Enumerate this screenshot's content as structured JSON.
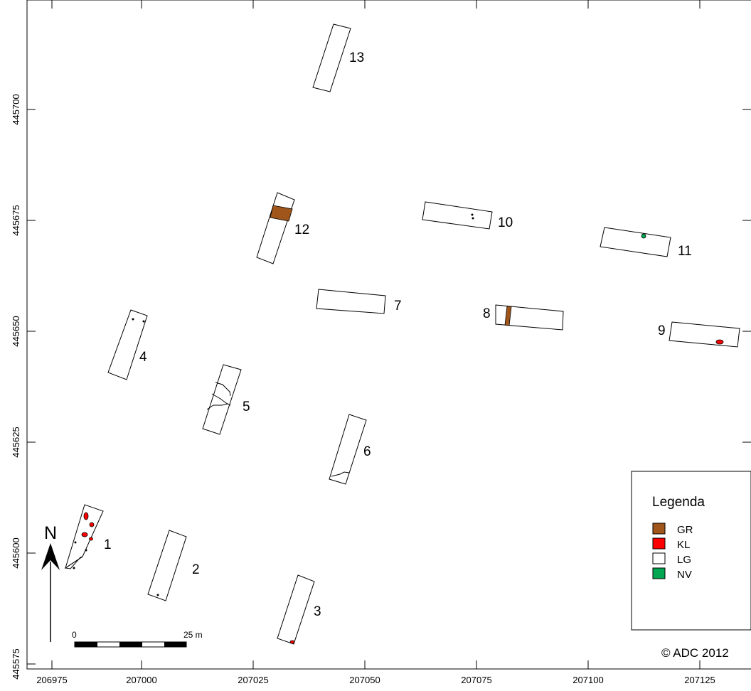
{
  "map": {
    "x_ticks": [
      "206975",
      "207000",
      "207025",
      "207050",
      "207075",
      "207100",
      "207125"
    ],
    "y_ticks": [
      "445575",
      "445600",
      "445625",
      "445650",
      "445675",
      "445700"
    ],
    "trenches": [
      {
        "id": "1",
        "label": "1"
      },
      {
        "id": "2",
        "label": "2"
      },
      {
        "id": "3",
        "label": "3"
      },
      {
        "id": "4",
        "label": "4"
      },
      {
        "id": "5",
        "label": "5"
      },
      {
        "id": "6",
        "label": "6"
      },
      {
        "id": "7",
        "label": "7"
      },
      {
        "id": "8",
        "label": "8"
      },
      {
        "id": "9",
        "label": "9"
      },
      {
        "id": "10",
        "label": "10"
      },
      {
        "id": "11",
        "label": "11"
      },
      {
        "id": "12",
        "label": "12"
      },
      {
        "id": "13",
        "label": "13"
      }
    ],
    "north_label": "N",
    "scale": {
      "start": "0",
      "end": "25 m"
    },
    "copyright": "© ADC 2012"
  },
  "legend": {
    "title": "Legenda",
    "items": [
      {
        "code": "GR",
        "color": "#a0561a"
      },
      {
        "code": "KL",
        "color": "#ff0000"
      },
      {
        "code": "LG",
        "color": "#ffffff"
      },
      {
        "code": "NV",
        "color": "#00a651"
      }
    ]
  }
}
